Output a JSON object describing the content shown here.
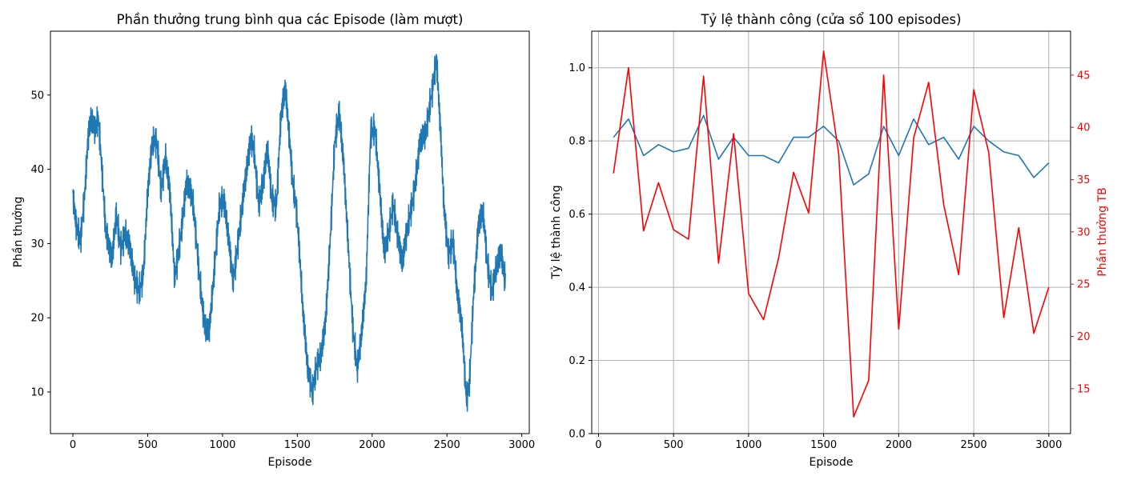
{
  "colors": {
    "blue": "#1f77b4",
    "red": "#ff0000",
    "grid": "#b0b0b0"
  },
  "chart_data": [
    {
      "type": "line",
      "title": "Phần thưởng trung bình qua các Episode (làm mượt)",
      "xlabel": "Episode",
      "ylabel": "Phần thưởng",
      "xlim": [
        -150,
        3050
      ],
      "ylim": [
        4.4,
        58.6
      ],
      "xticks": [
        0,
        500,
        1000,
        1500,
        2000,
        2500,
        3000
      ],
      "yticks": [
        10,
        20,
        30,
        40,
        50
      ],
      "grid": false,
      "series": [
        {
          "color": "#1f77b4",
          "x": [
            0,
            20,
            50,
            80,
            100,
            120,
            150,
            170,
            190,
            220,
            260,
            290,
            320,
            350,
            380,
            410,
            440,
            470,
            500,
            530,
            560,
            590,
            620,
            650,
            680,
            720,
            760,
            800,
            840,
            880,
            910,
            940,
            980,
            1010,
            1040,
            1070,
            1100,
            1130,
            1160,
            1190,
            1210,
            1240,
            1270,
            1300,
            1330,
            1360,
            1390,
            1420,
            1450,
            1470,
            1490,
            1510,
            1540,
            1570,
            1600,
            1630,
            1660,
            1690,
            1720,
            1750,
            1780,
            1810,
            1840,
            1870,
            1900,
            1930,
            1960,
            1990,
            2020,
            2050,
            2080,
            2110,
            2140,
            2170,
            2200,
            2240,
            2280,
            2320,
            2360,
            2400,
            2430,
            2460,
            2480,
            2510,
            2540,
            2570,
            2600,
            2630,
            2650,
            2680,
            2710,
            2740,
            2770,
            2800,
            2830,
            2860,
            2890
          ],
          "y": [
            35.5,
            32,
            30.5,
            38,
            45,
            47.5,
            45,
            46,
            40,
            31,
            28.5,
            35,
            30,
            31,
            28.5,
            24.5,
            23.5,
            26.5,
            38,
            44,
            43,
            36,
            41,
            37,
            26.5,
            31.5,
            37.5,
            35,
            27,
            20,
            19,
            25,
            34,
            35,
            31,
            26,
            30.5,
            35,
            39,
            43,
            42,
            35.5,
            39,
            44,
            36,
            34,
            46,
            50.5,
            44,
            39,
            36.5,
            31,
            20,
            12,
            9,
            13.5,
            16,
            21,
            31,
            43,
            46.5,
            40,
            30,
            20,
            14,
            18,
            24,
            44,
            45,
            38,
            30,
            32,
            35,
            30,
            26.5,
            33,
            38,
            44,
            44,
            49.5,
            55,
            45,
            36,
            29,
            30,
            22,
            18,
            9,
            12,
            25,
            33,
            34,
            26,
            22.5,
            27,
            30,
            26
          ]
        }
      ]
    },
    {
      "type": "line",
      "title": "Tỷ lệ thành công (cửa sổ 100 episodes)",
      "xlabel": "Episode",
      "ylabel": "Tỷ lệ thành công",
      "y2label": "Phần thưởng TB",
      "xlim": [
        -45,
        3145
      ],
      "ylim": [
        0.0,
        1.1
      ],
      "y2lim": [
        10.7,
        49.2
      ],
      "xticks": [
        0,
        500,
        1000,
        1500,
        2000,
        2500,
        3000
      ],
      "yticks": [
        0.0,
        0.2,
        0.4,
        0.6,
        0.8,
        1.0
      ],
      "y2ticks": [
        15,
        20,
        25,
        30,
        35,
        40,
        45
      ],
      "grid": true,
      "x": [
        100,
        200,
        300,
        400,
        500,
        600,
        700,
        800,
        900,
        1000,
        1100,
        1200,
        1300,
        1400,
        1500,
        1600,
        1700,
        1800,
        1900,
        2000,
        2100,
        2200,
        2300,
        2400,
        2500,
        2600,
        2700,
        2800,
        2900,
        3000
      ],
      "series": [
        {
          "axis": "left",
          "color": "#1f77b4",
          "values": [
            0.81,
            0.86,
            0.76,
            0.79,
            0.77,
            0.78,
            0.87,
            0.75,
            0.81,
            0.76,
            0.76,
            0.74,
            0.81,
            0.81,
            0.84,
            0.8,
            0.68,
            0.71,
            0.84,
            0.76,
            0.86,
            0.79,
            0.81,
            0.75,
            0.84,
            0.8,
            0.77,
            0.76,
            0.7,
            0.74
          ]
        },
        {
          "axis": "right",
          "color": "#ff0000",
          "values": [
            35.6,
            45.7,
            30.1,
            34.7,
            30.2,
            29.3,
            44.9,
            27.0,
            39.4,
            24.1,
            21.6,
            27.5,
            35.7,
            31.8,
            47.3,
            37.5,
            12.3,
            15.8,
            45.0,
            20.7,
            39.0,
            44.3,
            32.6,
            25.9,
            43.6,
            37.6,
            21.8,
            30.4,
            20.3,
            24.7
          ]
        }
      ]
    }
  ]
}
